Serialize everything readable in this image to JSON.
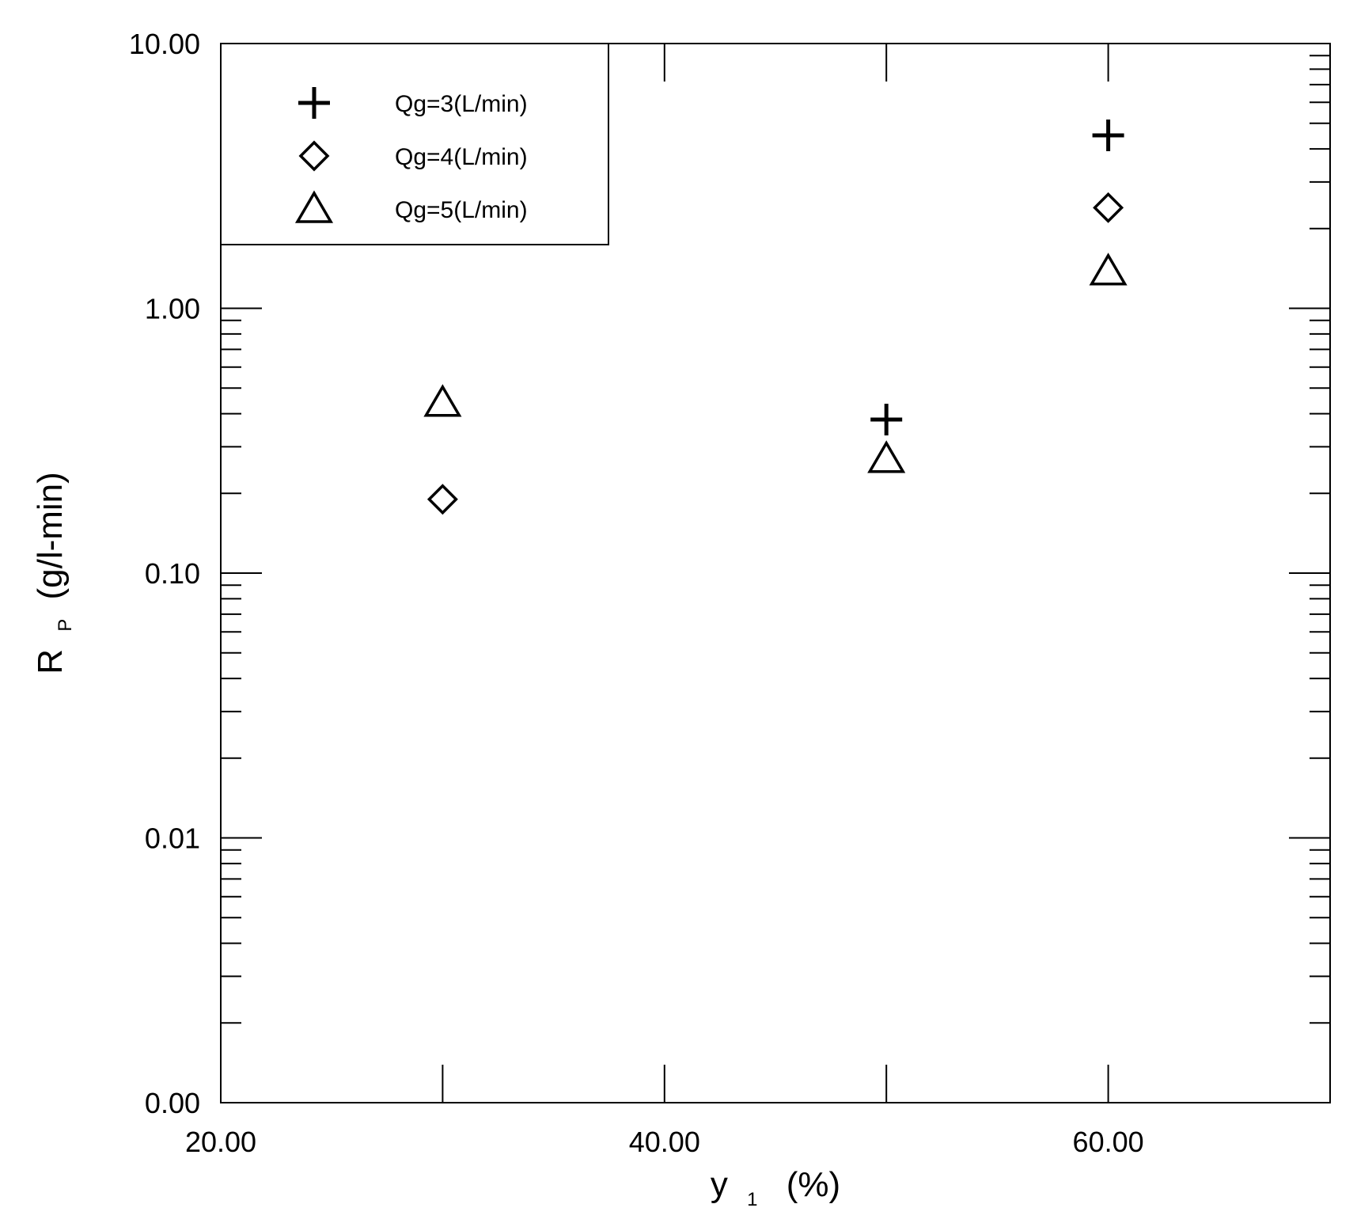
{
  "chart_data": {
    "type": "scatter",
    "title": "",
    "xlabel": {
      "main": "y",
      "sub": "1",
      "unit": "(%)"
    },
    "ylabel": {
      "main": "R",
      "sub": "P",
      "unit": "(g/l-min)"
    },
    "x_range": [
      20,
      70
    ],
    "y_range": [
      0.001,
      10
    ],
    "y_scale": "log",
    "x_tick_labels": [
      {
        "value": 20,
        "label": "20.00"
      },
      {
        "value": 40,
        "label": "40.00"
      },
      {
        "value": 60,
        "label": "60.00"
      }
    ],
    "y_tick_labels": [
      {
        "value": 10,
        "label": "10.00"
      },
      {
        "value": 1,
        "label": "1.00"
      },
      {
        "value": 0.1,
        "label": "0.10"
      },
      {
        "value": 0.01,
        "label": "0.01"
      },
      {
        "value": 0.001,
        "label": "0.00"
      }
    ],
    "legend_position": "top-left",
    "series": [
      {
        "name": "Qg=3(L/min)",
        "marker": "plus",
        "points": [
          {
            "x": 50,
            "y": 0.38
          },
          {
            "x": 60,
            "y": 4.5
          }
        ]
      },
      {
        "name": "Qg=4(L/min)",
        "marker": "diamond",
        "points": [
          {
            "x": 30,
            "y": 0.19
          },
          {
            "x": 60,
            "y": 2.4
          }
        ]
      },
      {
        "name": "Qg=5(L/min)",
        "marker": "triangle",
        "points": [
          {
            "x": 30,
            "y": 0.44
          },
          {
            "x": 50,
            "y": 0.27
          },
          {
            "x": 60,
            "y": 1.38
          }
        ]
      }
    ]
  }
}
